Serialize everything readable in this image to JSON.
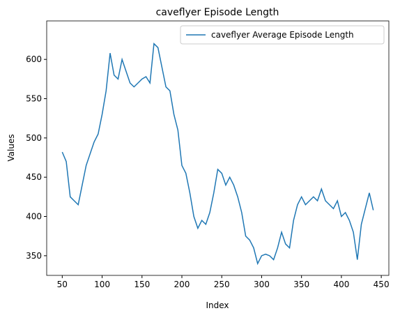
{
  "chart_data": {
    "type": "line",
    "title": "caveflyer Episode Length",
    "xlabel": "Index",
    "ylabel": "Values",
    "x": [
      50,
      55,
      60,
      65,
      70,
      75,
      80,
      85,
      90,
      95,
      100,
      105,
      110,
      115,
      120,
      125,
      130,
      135,
      140,
      145,
      150,
      155,
      160,
      165,
      170,
      175,
      180,
      185,
      190,
      195,
      200,
      205,
      210,
      215,
      220,
      225,
      230,
      235,
      240,
      245,
      250,
      255,
      260,
      265,
      270,
      275,
      280,
      285,
      290,
      295,
      300,
      305,
      310,
      315,
      320,
      325,
      330,
      335,
      340,
      345,
      350,
      355,
      360,
      365,
      370,
      375,
      380,
      385,
      390,
      395,
      400,
      405,
      410,
      415,
      420,
      425,
      430,
      435,
      440
    ],
    "series": [
      {
        "name": "caveflyer Average Episode Length",
        "color": "#1f77b4",
        "values": [
          482,
          470,
          425,
          420,
          415,
          440,
          465,
          480,
          495,
          505,
          530,
          560,
          608,
          580,
          575,
          600,
          585,
          570,
          565,
          570,
          575,
          578,
          570,
          620,
          615,
          590,
          565,
          560,
          530,
          510,
          465,
          455,
          430,
          400,
          385,
          395,
          390,
          405,
          430,
          460,
          455,
          440,
          450,
          440,
          425,
          405,
          375,
          370,
          360,
          340,
          350,
          352,
          350,
          345,
          360,
          380,
          365,
          360,
          395,
          415,
          425,
          415,
          420,
          425,
          420,
          435,
          420,
          415,
          410,
          420,
          400,
          405,
          395,
          380,
          345,
          390,
          410,
          430,
          408
        ]
      }
    ],
    "xlim": [
      30.5,
      459.5
    ],
    "ylim": [
      325,
      649
    ],
    "xticks": [
      50,
      100,
      150,
      200,
      250,
      300,
      350,
      400,
      450
    ],
    "yticks": [
      350,
      400,
      450,
      500,
      550,
      600
    ],
    "legend": "upper right"
  }
}
